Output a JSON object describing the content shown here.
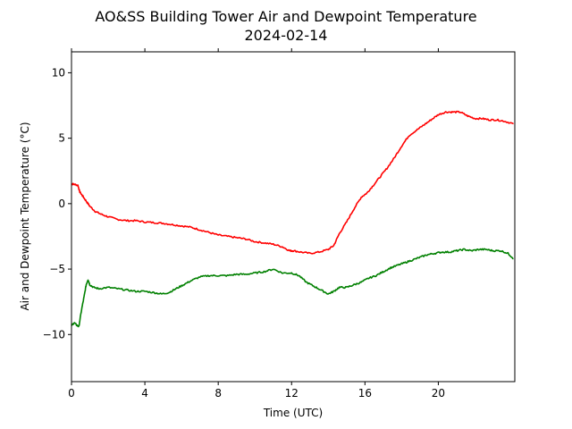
{
  "chart_data": {
    "type": "line",
    "title": "AO&SS Building Tower Air and Dewpoint Temperature",
    "subtitle": "2024-02-14",
    "xlabel": "Time (UTC)",
    "ylabel": "Air and Dewpoint Temperature (°C)",
    "xlim": [
      0,
      24.17
    ],
    "ylim": [
      -13.6,
      11.6
    ],
    "xticks": [
      0,
      4,
      8,
      12,
      16,
      20
    ],
    "yticks": [
      -10,
      -5,
      0,
      5,
      10
    ],
    "grid": false,
    "legend": "none",
    "series": [
      {
        "color": "#ff0000",
        "x": [
          0,
          0.1,
          0.35,
          0.45,
          0.6,
          0.8,
          1.0,
          1.3,
          1.6,
          2.0,
          2.5,
          3.0,
          3.5,
          4.0,
          4.5,
          5.0,
          5.5,
          6.0,
          6.5,
          7.0,
          7.5,
          8.0,
          8.5,
          9.0,
          9.5,
          10.0,
          10.5,
          11.0,
          11.5,
          11.9,
          12.1,
          12.5,
          13.0,
          13.5,
          14.0,
          14.3,
          14.6,
          15.0,
          15.4,
          15.8,
          16.1,
          16.4,
          16.8,
          17.2,
          17.6,
          18.0,
          18.4,
          18.8,
          19.2,
          19.6,
          20.0,
          20.4,
          20.8,
          21.2,
          21.6,
          22.0,
          22.4,
          22.8,
          23.2,
          23.6,
          24.1
        ],
        "y": [
          1.5,
          1.5,
          1.4,
          0.9,
          0.6,
          0.2,
          -0.2,
          -0.6,
          -0.8,
          -1.0,
          -1.2,
          -1.3,
          -1.3,
          -1.4,
          -1.45,
          -1.5,
          -1.6,
          -1.7,
          -1.8,
          -2.0,
          -2.2,
          -2.4,
          -2.5,
          -2.6,
          -2.7,
          -2.9,
          -3.0,
          -3.1,
          -3.3,
          -3.6,
          -3.6,
          -3.7,
          -3.8,
          -3.7,
          -3.5,
          -3.2,
          -2.3,
          -1.4,
          -0.4,
          0.5,
          0.8,
          1.3,
          2.0,
          2.7,
          3.5,
          4.4,
          5.2,
          5.6,
          6.0,
          6.4,
          6.8,
          7.0,
          7.0,
          7.0,
          6.7,
          6.5,
          6.5,
          6.4,
          6.4,
          6.3,
          6.1
        ]
      },
      {
        "color": "#008000",
        "x": [
          0,
          0.15,
          0.3,
          0.4,
          0.55,
          0.7,
          0.8,
          0.9,
          1.0,
          1.2,
          1.5,
          2.0,
          2.5,
          3.0,
          3.5,
          4.0,
          4.5,
          4.9,
          5.3,
          5.7,
          6.1,
          6.5,
          7.0,
          7.5,
          8.0,
          8.5,
          9.0,
          9.5,
          10.0,
          10.5,
          11.0,
          11.5,
          12.0,
          12.4,
          12.8,
          13.2,
          13.6,
          14.0,
          14.3,
          14.6,
          15.0,
          15.4,
          15.8,
          16.2,
          16.6,
          17.0,
          17.4,
          17.8,
          18.2,
          18.6,
          19.0,
          19.4,
          19.8,
          20.2,
          20.6,
          21.0,
          21.4,
          21.8,
          22.2,
          22.6,
          23.0,
          23.4,
          23.8,
          24.1
        ],
        "y": [
          -9.3,
          -9.1,
          -9.3,
          -9.4,
          -8.1,
          -7.0,
          -6.2,
          -5.8,
          -6.2,
          -6.4,
          -6.5,
          -6.4,
          -6.5,
          -6.6,
          -6.7,
          -6.7,
          -6.8,
          -6.9,
          -6.8,
          -6.5,
          -6.2,
          -5.9,
          -5.6,
          -5.5,
          -5.5,
          -5.5,
          -5.4,
          -5.4,
          -5.3,
          -5.2,
          -5.0,
          -5.3,
          -5.3,
          -5.5,
          -6.0,
          -6.3,
          -6.6,
          -6.9,
          -6.7,
          -6.4,
          -6.4,
          -6.2,
          -6.0,
          -5.7,
          -5.5,
          -5.2,
          -4.9,
          -4.7,
          -4.5,
          -4.3,
          -4.1,
          -3.9,
          -3.8,
          -3.7,
          -3.7,
          -3.6,
          -3.5,
          -3.6,
          -3.5,
          -3.5,
          -3.6,
          -3.6,
          -3.8,
          -4.2
        ]
      }
    ]
  }
}
